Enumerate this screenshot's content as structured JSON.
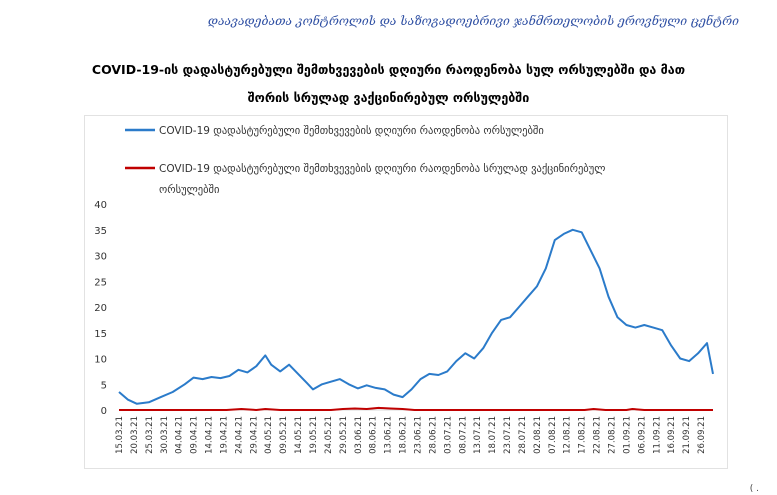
{
  "header": {
    "organization": "დაავადებათა კონტროლის და საზოგადოებრივი ჯანმრთელობის ეროვნული ცენტრი",
    "title_line1": "COVID-19-ის დადასტურებული შემთხვევების დღიური რაოდენობა სულ ორსულებში და მათ",
    "title_line2": "შორის სრულად ვაქცინირებულ ორსულებში"
  },
  "chart_data": {
    "type": "line",
    "title": "COVID-19-ის დადასტურებული შემთხვევების დღიური რაოდენობა სულ ორსულებში და მათ შორის სრულად ვაქცინირებულ ორსულებში",
    "xlabel": "",
    "ylabel": "",
    "ylim": [
      0,
      40
    ],
    "yticks": [
      0,
      5,
      10,
      15,
      20,
      25,
      30,
      35,
      40
    ],
    "grid": false,
    "legend_position": "top-left",
    "x_start": "15.03.21",
    "x_end": "30.09.21",
    "x_tick_labels": [
      "15.03.21",
      "20.03.21",
      "25.03.21",
      "30.03.21",
      "04.04.21",
      "09.04.21",
      "14.04.21",
      "19.04.21",
      "24.04.21",
      "29.04.21",
      "04.05.21",
      "09.05.21",
      "14.05.21",
      "19.05.21",
      "24.05.21",
      "29.05.21",
      "03.06.21",
      "08.06.21",
      "13.06.21",
      "18.06.21",
      "23.06.21",
      "28.06.21",
      "03.07.21",
      "08.07.21",
      "13.07.21",
      "18.07.21",
      "23.07.21",
      "28.07.21",
      "02.08.21",
      "07.08.21",
      "12.08.21",
      "17.08.21",
      "22.08.21",
      "27.08.21",
      "01.09.21",
      "06.09.21",
      "11.09.21",
      "16.09.21",
      "21.09.21",
      "26.09.21"
    ],
    "series": [
      {
        "name": "COVID-19 დადასტურებული შემთხვევების დღიური რაოდენობა ორსულებში",
        "color": "#2b7bca",
        "points": [
          [
            "15.03.21",
            3.5
          ],
          [
            "18.03.21",
            2.0
          ],
          [
            "21.03.21",
            1.2
          ],
          [
            "25.03.21",
            1.5
          ],
          [
            "29.03.21",
            2.5
          ],
          [
            "02.04.21",
            3.5
          ],
          [
            "06.04.21",
            5.0
          ],
          [
            "09.04.21",
            6.3
          ],
          [
            "12.04.21",
            6.0
          ],
          [
            "15.04.21",
            6.4
          ],
          [
            "18.04.21",
            6.2
          ],
          [
            "21.04.21",
            6.6
          ],
          [
            "24.04.21",
            7.8
          ],
          [
            "27.04.21",
            7.3
          ],
          [
            "30.04.21",
            8.5
          ],
          [
            "03.05.21",
            10.6
          ],
          [
            "05.05.21",
            8.8
          ],
          [
            "08.05.21",
            7.5
          ],
          [
            "11.05.21",
            8.8
          ],
          [
            "14.05.21",
            7.0
          ],
          [
            "17.05.21",
            5.2
          ],
          [
            "19.05.21",
            4.0
          ],
          [
            "22.05.21",
            5.0
          ],
          [
            "25.05.21",
            5.5
          ],
          [
            "28.05.21",
            6.0
          ],
          [
            "31.05.21",
            5.0
          ],
          [
            "03.06.21",
            4.2
          ],
          [
            "06.06.21",
            4.8
          ],
          [
            "09.06.21",
            4.3
          ],
          [
            "12.06.21",
            4.0
          ],
          [
            "15.06.21",
            3.0
          ],
          [
            "18.06.21",
            2.5
          ],
          [
            "21.06.21",
            4.0
          ],
          [
            "24.06.21",
            6.0
          ],
          [
            "27.06.21",
            7.0
          ],
          [
            "30.06.21",
            6.8
          ],
          [
            "03.07.21",
            7.5
          ],
          [
            "06.07.21",
            9.5
          ],
          [
            "09.07.21",
            11.0
          ],
          [
            "12.07.21",
            10.0
          ],
          [
            "15.07.21",
            12.0
          ],
          [
            "18.07.21",
            15.0
          ],
          [
            "21.07.21",
            17.5
          ],
          [
            "24.07.21",
            18.0
          ],
          [
            "27.07.21",
            20.0
          ],
          [
            "30.07.21",
            22.0
          ],
          [
            "02.08.21",
            24.0
          ],
          [
            "05.08.21",
            27.5
          ],
          [
            "08.08.21",
            33.0
          ],
          [
            "11.08.21",
            34.2
          ],
          [
            "14.08.21",
            35.0
          ],
          [
            "17.08.21",
            34.5
          ],
          [
            "20.08.21",
            31.0
          ],
          [
            "23.08.21",
            27.5
          ],
          [
            "26.08.21",
            22.0
          ],
          [
            "29.08.21",
            18.0
          ],
          [
            "01.09.21",
            16.5
          ],
          [
            "04.09.21",
            16.0
          ],
          [
            "07.09.21",
            16.5
          ],
          [
            "10.09.21",
            16.0
          ],
          [
            "13.09.21",
            15.5
          ],
          [
            "16.09.21",
            12.5
          ],
          [
            "19.09.21",
            10.0
          ],
          [
            "22.09.21",
            9.5
          ],
          [
            "25.09.21",
            11.0
          ],
          [
            "28.09.21",
            13.0
          ],
          [
            "30.09.21",
            7.0
          ]
        ]
      },
      {
        "name": "COVID-19 დადასტურებული შემთხვევების დღიური რაოდენობა  სრულად ვაქცინირებულ ორსულებში",
        "color": "#c00000",
        "points": [
          [
            "15.03.21",
            0
          ],
          [
            "20.04.21",
            0
          ],
          [
            "25.04.21",
            0.2
          ],
          [
            "30.04.21",
            0
          ],
          [
            "03.05.21",
            0.2
          ],
          [
            "08.05.21",
            0
          ],
          [
            "25.05.21",
            0
          ],
          [
            "29.05.21",
            0.2
          ],
          [
            "02.06.21",
            0.3
          ],
          [
            "06.06.21",
            0.2
          ],
          [
            "10.06.21",
            0.4
          ],
          [
            "14.06.21",
            0.3
          ],
          [
            "18.06.21",
            0.2
          ],
          [
            "22.06.21",
            0
          ],
          [
            "18.08.21",
            0
          ],
          [
            "21.08.21",
            0.2
          ],
          [
            "25.08.21",
            0
          ],
          [
            "01.09.21",
            0
          ],
          [
            "03.09.21",
            0.2
          ],
          [
            "07.09.21",
            0
          ],
          [
            "30.09.21",
            0
          ]
        ]
      }
    ]
  },
  "footer": {
    "note": "( ."
  }
}
